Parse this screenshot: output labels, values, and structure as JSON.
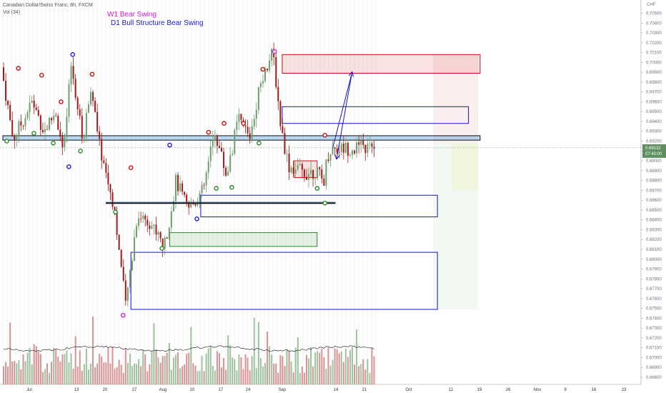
{
  "header": {
    "title": "Canadian Dollar/Swiss Franc, 8h, FXCM",
    "volume_label": "Vol (34)"
  },
  "annotations": {
    "w1_text": "W1 Bear Swing",
    "w1_color": "#d020d0",
    "d1_text": "D1 Bull Structure Bear Swing",
    "d1_color": "#1a1ad8"
  },
  "price_axis": {
    "currency": "CHF",
    "labels": [
      "0.70500",
      "0.70400",
      "0.70300",
      "0.70200",
      "0.70100",
      "0.70000",
      "0.69900",
      "0.69800",
      "0.69700",
      "0.69600",
      "0.69500",
      "0.69400",
      "0.69300",
      "0.69200",
      "0.69100",
      "0.69000",
      "0.68900",
      "0.68800",
      "0.68700",
      "0.68600",
      "0.68500",
      "0.68400",
      "0.68300",
      "0.68200",
      "0.68100",
      "0.68000",
      "0.67900",
      "0.67800",
      "0.67700",
      "0.67600",
      "0.67500",
      "0.67400",
      "0.67300",
      "0.67200",
      "0.67100",
      "0.67000",
      "0.66900",
      "0.66800"
    ],
    "current_price": "0.69132",
    "countdown": "07:40:00"
  },
  "time_axis": {
    "labels": [
      "Jul",
      "13",
      "20",
      "27",
      "Aug",
      "10",
      "17",
      "24",
      "Sep",
      "14",
      "21",
      "Oct",
      "12",
      "19",
      "26",
      "Nov",
      "9",
      "16",
      "23"
    ]
  },
  "colors": {
    "bull": "#6d9f6d",
    "bear": "#a11a1a",
    "blue_box": "#1515c8",
    "red_box": "#cc1111",
    "green_box": "#2a8a2a",
    "horizontal_zone": "#3a8fd8"
  },
  "chart_data": {
    "type": "candlestick",
    "symbol": "Canadian Dollar/Swiss Franc",
    "interval": "8h",
    "y_range": [
      0.667,
      0.7055
    ],
    "x_period": [
      "Jun 29",
      "Sep 22"
    ],
    "swing_path": [
      {
        "date": "Jun 29",
        "price": 0.6995
      },
      {
        "date": "Jul 2",
        "price": 0.6922
      },
      {
        "date": "Jul 7",
        "price": 0.696
      },
      {
        "date": "Jul 10",
        "price": 0.693
      },
      {
        "date": "Jul 13",
        "price": 0.695
      },
      {
        "date": "Jul 15",
        "price": 0.6905
      },
      {
        "date": "Jul 17",
        "price": 0.6998
      },
      {
        "date": "Jul 20",
        "price": 0.6918
      },
      {
        "date": "Jul 22",
        "price": 0.6978
      },
      {
        "date": "Jul 24",
        "price": 0.692
      },
      {
        "date": "Jul 27",
        "price": 0.687
      },
      {
        "date": "Jul 28",
        "price": 0.6855
      },
      {
        "date": "Jul 31",
        "price": 0.6752
      },
      {
        "date": "Aug 3",
        "price": 0.6845
      },
      {
        "date": "Aug 6",
        "price": 0.684
      },
      {
        "date": "Aug 10",
        "price": 0.6812
      },
      {
        "date": "Aug 13",
        "price": 0.688
      },
      {
        "date": "Aug 16",
        "price": 0.685
      },
      {
        "date": "Aug 20",
        "price": 0.687
      },
      {
        "date": "Aug 23",
        "price": 0.693
      },
      {
        "date": "Aug 26",
        "price": 0.6885
      },
      {
        "date": "Aug 29",
        "price": 0.6942
      },
      {
        "date": "Sep 1",
        "price": 0.6925
      },
      {
        "date": "Sep 4",
        "price": 0.6985
      },
      {
        "date": "Sep 7",
        "price": 0.701
      },
      {
        "date": "Sep 9",
        "price": 0.6935
      },
      {
        "date": "Sep 11",
        "price": 0.6895
      },
      {
        "date": "Sep 15",
        "price": 0.6888
      },
      {
        "date": "Sep 18",
        "price": 0.689
      },
      {
        "date": "Sep 20",
        "price": 0.6878
      },
      {
        "date": "Sep 21",
        "price": 0.6905
      },
      {
        "date": "Sep 22",
        "price": 0.6913
      }
    ],
    "zones": [
      {
        "kind": "red_box",
        "from": "Sep 9",
        "to": "Oct 30",
        "top": 0.7008,
        "bottom": 0.6989
      },
      {
        "kind": "blue_box",
        "from": "Sep 9",
        "to": "Oct 27",
        "top": 0.6955,
        "bottom": 0.6938
      },
      {
        "kind": "horizontal_zone",
        "from": "Jun 29",
        "to": "Oct 30",
        "top": 0.69255,
        "bottom": 0.6921
      },
      {
        "kind": "red_box",
        "from": "Sep 12",
        "to": "Sep 18",
        "top": 0.69,
        "bottom": 0.6883
      },
      {
        "kind": "blue_box",
        "from": "Aug 19",
        "to": "Oct 19",
        "top": 0.6865,
        "bottom": 0.6843
      },
      {
        "kind": "green_box",
        "from": "Aug 11",
        "to": "Sep 18",
        "top": 0.6827,
        "bottom": 0.6813
      },
      {
        "kind": "blue_box",
        "from": "Aug 1",
        "to": "Oct 19",
        "top": 0.6807,
        "bottom": 0.6749
      }
    ],
    "support_line": {
      "from": "Jul 27",
      "to": "Sep 22",
      "price": 0.6857
    },
    "projection_arrows": [
      {
        "from": {
          "date": "Sep 22",
          "price": 0.6913
        },
        "to": {
          "date": "Sep 27",
          "price": 0.699
        }
      },
      {
        "from": {
          "date": "Sep 27",
          "price": 0.699
        },
        "to": {
          "date": "Sep 23",
          "price": 0.6902
        }
      }
    ],
    "swing_markers": [
      {
        "date": "Jun 30",
        "price": 0.692,
        "type": "low",
        "color": "green"
      },
      {
        "date": "Jul 3",
        "price": 0.6994,
        "type": "high",
        "color": "red"
      },
      {
        "date": "Jul 7",
        "price": 0.6928,
        "type": "low",
        "color": "green"
      },
      {
        "date": "Jul 9",
        "price": 0.6987,
        "type": "high",
        "color": "red"
      },
      {
        "date": "Jul 12",
        "price": 0.6918,
        "type": "low",
        "color": "green"
      },
      {
        "date": "Jul 14",
        "price": 0.696,
        "type": "high",
        "color": "red"
      },
      {
        "date": "Jul 16",
        "price": 0.6894,
        "type": "low",
        "color": "blue"
      },
      {
        "date": "Jul 17",
        "price": 0.7008,
        "type": "high",
        "color": "blue"
      },
      {
        "date": "Jul 19",
        "price": 0.691,
        "type": "low",
        "color": "green"
      },
      {
        "date": "Jul 22",
        "price": 0.6988,
        "type": "high",
        "color": "red"
      },
      {
        "date": "Jul 28",
        "price": 0.6848,
        "type": "low",
        "color": "green"
      },
      {
        "date": "Jul 30",
        "price": 0.6743,
        "type": "low",
        "color": "magenta"
      },
      {
        "date": "Aug 1",
        "price": 0.6893,
        "type": "high",
        "color": "red"
      },
      {
        "date": "Aug 9",
        "price": 0.6811,
        "type": "low",
        "color": "green"
      },
      {
        "date": "Aug 11",
        "price": 0.6916,
        "type": "high",
        "color": "blue"
      },
      {
        "date": "Aug 18",
        "price": 0.6841,
        "type": "low",
        "color": "blue"
      },
      {
        "date": "Aug 21",
        "price": 0.6929,
        "type": "high",
        "color": "red"
      },
      {
        "date": "Aug 23",
        "price": 0.6872,
        "type": "low",
        "color": "green"
      },
      {
        "date": "Aug 25",
        "price": 0.6938,
        "type": "high",
        "color": "red"
      },
      {
        "date": "Aug 27",
        "price": 0.6873,
        "type": "low",
        "color": "green"
      },
      {
        "date": "Aug 30",
        "price": 0.6938,
        "type": "high",
        "color": "red"
      },
      {
        "date": "Sep 3",
        "price": 0.6918,
        "type": "low",
        "color": "green"
      },
      {
        "date": "Sep 4",
        "price": 0.6993,
        "type": "high",
        "color": "red"
      },
      {
        "date": "Sep 7",
        "price": 0.7011,
        "type": "high",
        "color": "magenta"
      },
      {
        "date": "Sep 18",
        "price": 0.6872,
        "type": "low",
        "color": "green"
      },
      {
        "date": "Sep 20",
        "price": 0.6926,
        "type": "high",
        "color": "red"
      },
      {
        "date": "Sep 20",
        "price": 0.6857,
        "type": "low",
        "color": "green"
      }
    ]
  }
}
